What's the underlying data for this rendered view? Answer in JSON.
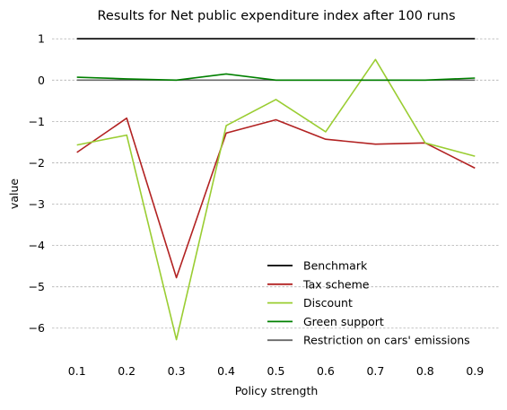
{
  "chart_data": {
    "type": "line",
    "title": "Results for Net public expenditure index after 100 runs",
    "xlabel": "Policy strength",
    "ylabel": "value",
    "x": [
      0.1,
      0.2,
      0.3,
      0.4,
      0.5,
      0.6,
      0.7,
      0.8,
      0.9
    ],
    "x_tick_labels": [
      "0.1",
      "0.2",
      "0.3",
      "0.4",
      "0.5",
      "0.6",
      "0.7",
      "0.8",
      "0.9"
    ],
    "y_ticks": [
      1,
      0,
      -1,
      -2,
      -3,
      -4,
      -5,
      -6
    ],
    "y_tick_labels": [
      "1",
      "0",
      "−1",
      "−2",
      "−3",
      "−4",
      "−5",
      "−6"
    ],
    "ylim": [
      -6.7,
      1.2
    ],
    "grid": "horizontal-dashed",
    "legend_position": "lower-right",
    "series": [
      {
        "name": "Benchmark",
        "color": "#000000",
        "values": [
          1,
          1,
          1,
          1,
          1,
          1,
          1,
          1,
          1
        ]
      },
      {
        "name": "Tax scheme",
        "color": "#b22222",
        "values": [
          -1.75,
          -0.92,
          -4.78,
          -1.28,
          -0.96,
          -1.43,
          -1.55,
          -1.52,
          -2.13
        ]
      },
      {
        "name": "Discount",
        "color": "#9acd32",
        "values": [
          -1.57,
          -1.33,
          -6.28,
          -1.1,
          -0.47,
          -1.25,
          0.5,
          -1.52,
          -1.84
        ]
      },
      {
        "name": "Green support",
        "color": "#008000",
        "values": [
          0.07,
          0.03,
          0.0,
          0.15,
          0.0,
          0.0,
          0.0,
          0.0,
          0.05
        ]
      },
      {
        "name": "Restriction on cars' emissions",
        "color": "#696969",
        "values": [
          0.0,
          0.0,
          0.0,
          0.0,
          0.0,
          0.0,
          0.0,
          0.0,
          0.0
        ]
      }
    ]
  }
}
